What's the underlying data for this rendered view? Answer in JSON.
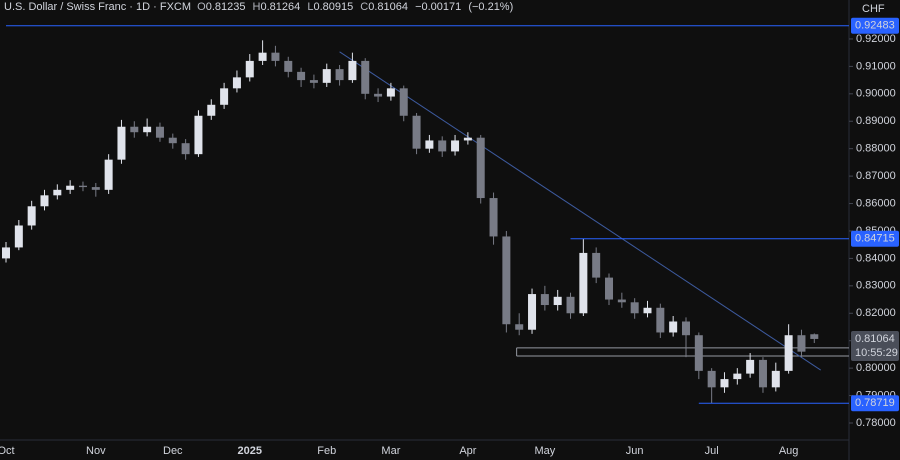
{
  "chart_data": {
    "type": "candlestick",
    "title": "U.S. Dollar / Swiss Franc · 1D · FXCM",
    "currency": "CHF",
    "ohlc_labels": [
      "O",
      "H",
      "L",
      "C"
    ],
    "change": {
      "value": -0.00171,
      "label": "−0.00171"
    },
    "change_percent": {
      "value": -0.21,
      "label": "(−0.21%)"
    },
    "countdown": "10:55:29",
    "categories": [
      "Oct",
      null,
      null,
      null,
      null,
      null,
      null,
      "Nov",
      null,
      null,
      null,
      null,
      null,
      "Dec",
      null,
      null,
      null,
      null,
      null,
      "2025",
      null,
      null,
      null,
      null,
      null,
      "Feb",
      null,
      null,
      null,
      null,
      "Mar",
      null,
      null,
      null,
      null,
      null,
      "Apr",
      null,
      null,
      null,
      null,
      null,
      "May",
      null,
      null,
      null,
      null,
      null,
      null,
      "Jun",
      null,
      null,
      null,
      null,
      null,
      "Jul",
      null,
      null,
      null,
      null,
      null,
      "Aug",
      null,
      null
    ],
    "open": [
      0.84,
      0.844,
      0.852,
      0.859,
      0.863,
      0.865,
      0.8665,
      0.866,
      0.865,
      0.876,
      0.888,
      0.886,
      0.888,
      0.884,
      0.882,
      0.878,
      0.892,
      0.896,
      0.902,
      0.906,
      0.912,
      0.915,
      0.912,
      0.908,
      0.905,
      0.904,
      0.909,
      0.905,
      0.912,
      0.9,
      0.899,
      0.902,
      0.892,
      0.88,
      0.883,
      0.879,
      0.883,
      0.884,
      0.862,
      0.848,
      0.816,
      0.814,
      0.827,
      0.823,
      0.826,
      0.82,
      0.842,
      0.833,
      0.825,
      0.824,
      0.82,
      0.822,
      0.813,
      0.817,
      0.812,
      0.799,
      0.793,
      0.796,
      0.798,
      0.803,
      0.793,
      0.799,
      0.812,
      0.81235
    ],
    "high": [
      0.846,
      0.854,
      0.861,
      0.865,
      0.867,
      0.8685,
      0.868,
      0.8675,
      0.878,
      0.8905,
      0.89,
      0.891,
      0.8895,
      0.8855,
      0.8835,
      0.894,
      0.898,
      0.904,
      0.9085,
      0.9145,
      0.9195,
      0.9175,
      0.9135,
      0.9095,
      0.907,
      0.911,
      0.9105,
      0.915,
      0.913,
      0.902,
      0.904,
      0.903,
      0.893,
      0.885,
      0.8845,
      0.885,
      0.886,
      0.885,
      0.864,
      0.85,
      0.82,
      0.829,
      0.83,
      0.8285,
      0.8275,
      0.8472,
      0.844,
      0.8345,
      0.8275,
      0.8255,
      0.8245,
      0.8235,
      0.819,
      0.8185,
      0.813,
      0.8,
      0.7985,
      0.8,
      0.8055,
      0.804,
      0.802,
      0.816,
      0.814,
      0.81264
    ],
    "low": [
      0.8385,
      0.843,
      0.8505,
      0.8575,
      0.8615,
      0.8635,
      0.8645,
      0.8625,
      0.8635,
      0.8745,
      0.884,
      0.8845,
      0.8825,
      0.88,
      0.876,
      0.877,
      0.8905,
      0.8945,
      0.9005,
      0.9045,
      0.9105,
      0.91,
      0.906,
      0.9025,
      0.902,
      0.9025,
      0.903,
      0.904,
      0.898,
      0.897,
      0.8975,
      0.89,
      0.878,
      0.8785,
      0.877,
      0.8775,
      0.8815,
      0.86,
      0.845,
      0.813,
      0.812,
      0.8125,
      0.821,
      0.821,
      0.818,
      0.819,
      0.831,
      0.823,
      0.822,
      0.818,
      0.8185,
      0.811,
      0.8115,
      0.804,
      0.796,
      0.7872,
      0.791,
      0.794,
      0.7965,
      0.791,
      0.7915,
      0.798,
      0.804,
      0.80915
    ],
    "close": [
      0.844,
      0.852,
      0.859,
      0.863,
      0.865,
      0.8665,
      0.866,
      0.865,
      0.876,
      0.888,
      0.886,
      0.888,
      0.884,
      0.882,
      0.878,
      0.892,
      0.896,
      0.902,
      0.906,
      0.912,
      0.915,
      0.912,
      0.908,
      0.905,
      0.904,
      0.909,
      0.905,
      0.912,
      0.9,
      0.899,
      0.902,
      0.892,
      0.88,
      0.883,
      0.879,
      0.883,
      0.884,
      0.862,
      0.848,
      0.816,
      0.814,
      0.827,
      0.823,
      0.826,
      0.82,
      0.842,
      0.833,
      0.825,
      0.824,
      0.82,
      0.822,
      0.813,
      0.817,
      0.812,
      0.799,
      0.793,
      0.796,
      0.798,
      0.803,
      0.793,
      0.799,
      0.812,
      0.806,
      0.81064
    ],
    "up_color": "#e0e3eb",
    "down_color": "#787b86",
    "ylim": [
      0.7738,
      0.9342
    ],
    "yticks": [
      {
        "value": 0.92,
        "label": "0.92000"
      },
      {
        "value": 0.91,
        "label": "0.91000"
      },
      {
        "value": 0.9,
        "label": "0.90000"
      },
      {
        "value": 0.89,
        "label": "0.89000"
      },
      {
        "value": 0.88,
        "label": "0.88000"
      },
      {
        "value": 0.87,
        "label": "0.87000"
      },
      {
        "value": 0.86,
        "label": "0.86000"
      },
      {
        "value": 0.85,
        "label": "0.85000"
      },
      {
        "value": 0.84,
        "label": "0.84000"
      },
      {
        "value": 0.83,
        "label": "0.83000"
      },
      {
        "value": 0.82,
        "label": "0.82000"
      },
      {
        "value": 0.81,
        "label": "0.81000"
      },
      {
        "value": 0.8,
        "label": "0.80000"
      },
      {
        "value": 0.79,
        "label": "0.79000"
      },
      {
        "value": 0.78,
        "label": "0.78000"
      }
    ],
    "levels": [
      {
        "value": 0.92483,
        "start": 0
      },
      {
        "value": 0.84715,
        "start": 44
      },
      {
        "value": 0.78719,
        "start": 54
      }
    ],
    "level_color": "#2962ff",
    "trendline": {
      "from": [
        26,
        0.9153
      ],
      "to": [
        63.5,
        0.7993
      ]
    },
    "zone": {
      "start": 39.8,
      "top": 0.8074,
      "bottom": 0.8044
    }
  }
}
